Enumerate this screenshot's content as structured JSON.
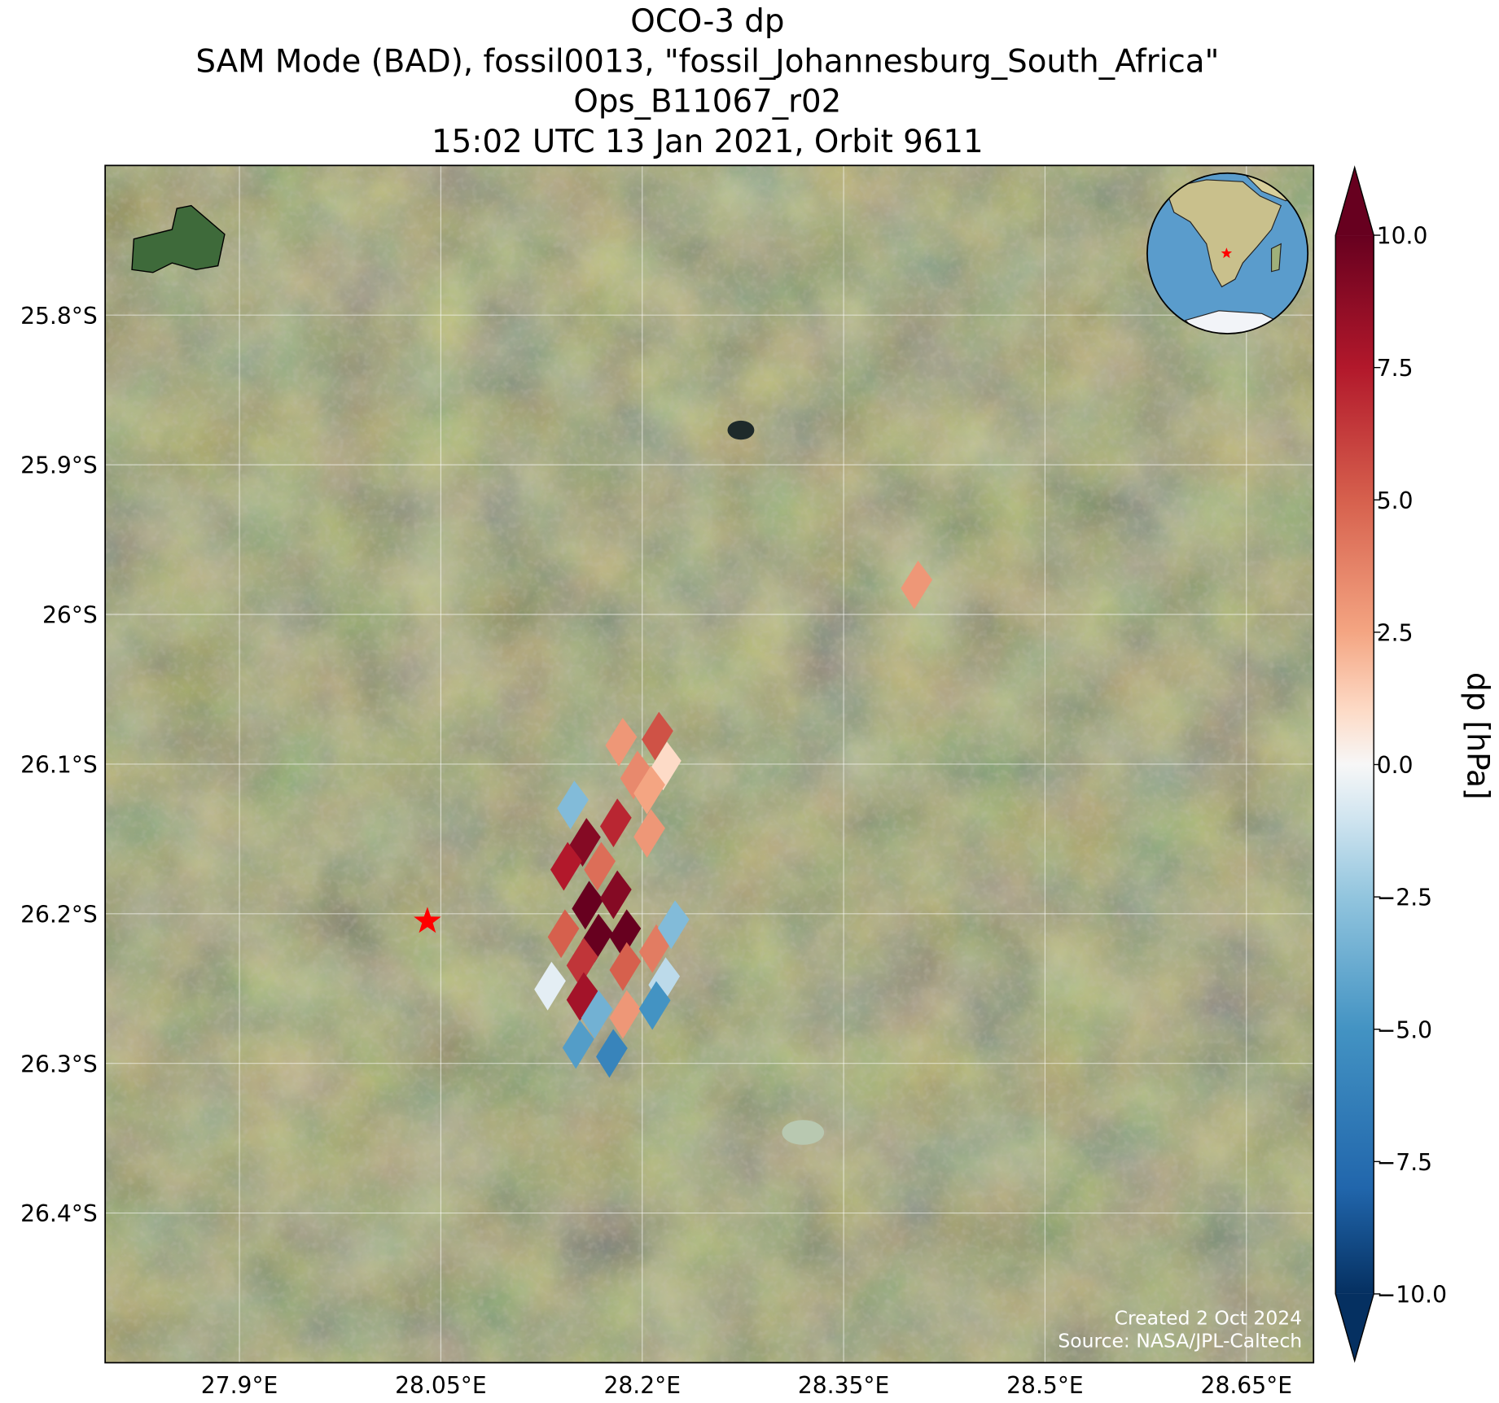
{
  "chart_data": {
    "type": "map",
    "title": [
      "OCO-3 dp",
      "SAM Mode (BAD), fossil0013, \"fossil_Johannesburg_South_Africa\"",
      "Ops_B11067_r02",
      "15:02 UTC 13 Jan 2021, Orbit 9611"
    ],
    "xlim": [
      27.8,
      28.7
    ],
    "ylim": [
      -26.5,
      -25.7
    ],
    "xticks": [
      {
        "value": 27.9,
        "label": "27.9°E"
      },
      {
        "value": 28.05,
        "label": "28.05°E"
      },
      {
        "value": 28.2,
        "label": "28.2°E"
      },
      {
        "value": 28.35,
        "label": "28.35°E"
      },
      {
        "value": 28.5,
        "label": "28.5°E"
      },
      {
        "value": 28.65,
        "label": "28.65°E"
      }
    ],
    "yticks": [
      {
        "value": -25.8,
        "label": "25.8°S"
      },
      {
        "value": -25.9,
        "label": "25.9°S"
      },
      {
        "value": -26.0,
        "label": "26°S"
      },
      {
        "value": -26.1,
        "label": "26.1°S"
      },
      {
        "value": -26.2,
        "label": "26.2°S"
      },
      {
        "value": -26.3,
        "label": "26.3°S"
      },
      {
        "value": -26.4,
        "label": "26.4°S"
      }
    ],
    "grid": true,
    "lon": [
      28.184,
      28.211,
      28.195,
      28.217,
      28.205,
      28.148,
      28.157,
      28.143,
      28.18,
      28.168,
      28.205,
      28.159,
      28.18,
      28.141,
      28.166,
      28.187,
      28.155,
      28.131,
      28.155,
      28.187,
      28.209,
      28.223,
      28.216,
      28.166,
      28.187,
      28.209,
      28.152,
      28.177,
      28.404
    ],
    "lat": [
      -26.085,
      -26.081,
      -26.107,
      -26.101,
      -26.117,
      -26.127,
      -26.152,
      -26.168,
      -26.139,
      -26.168,
      -26.146,
      -26.194,
      -26.187,
      -26.213,
      -26.216,
      -26.213,
      -26.232,
      -26.248,
      -26.255,
      -26.235,
      -26.223,
      -26.207,
      -26.245,
      -26.267,
      -26.267,
      -26.261,
      -26.287,
      -26.293,
      -25.98
    ],
    "values": [
      3,
      5.5,
      3.5,
      1,
      2.5,
      -3,
      9,
      7.5,
      7,
      4.5,
      3,
      10,
      9,
      5,
      10,
      10,
      6.5,
      -0.5,
      8,
      5,
      4,
      -3,
      -1.5,
      -3.5,
      3,
      -5,
      -4.5,
      -6,
      3
    ],
    "marker": {
      "lon": 28.04,
      "lat": -26.205,
      "color": "#ff0000"
    },
    "colormap": "RdBu_r",
    "clim": [
      -10,
      10
    ],
    "cticks": [
      {
        "value": -10,
        "label": "−10.0"
      },
      {
        "value": -7.5,
        "label": "−7.5"
      },
      {
        "value": -5,
        "label": "−5.0"
      },
      {
        "value": -2.5,
        "label": "−2.5"
      },
      {
        "value": 0,
        "label": "0.0"
      },
      {
        "value": 2.5,
        "label": "2.5"
      },
      {
        "value": 5,
        "label": "5.0"
      },
      {
        "value": 7.5,
        "label": "7.5"
      },
      {
        "value": 10,
        "label": "10.0"
      }
    ],
    "colorbar_label": "dp [hPa]",
    "annotations": [
      "Created 2 Oct 2024",
      "Source: NASA/JPL-Caltech"
    ]
  }
}
